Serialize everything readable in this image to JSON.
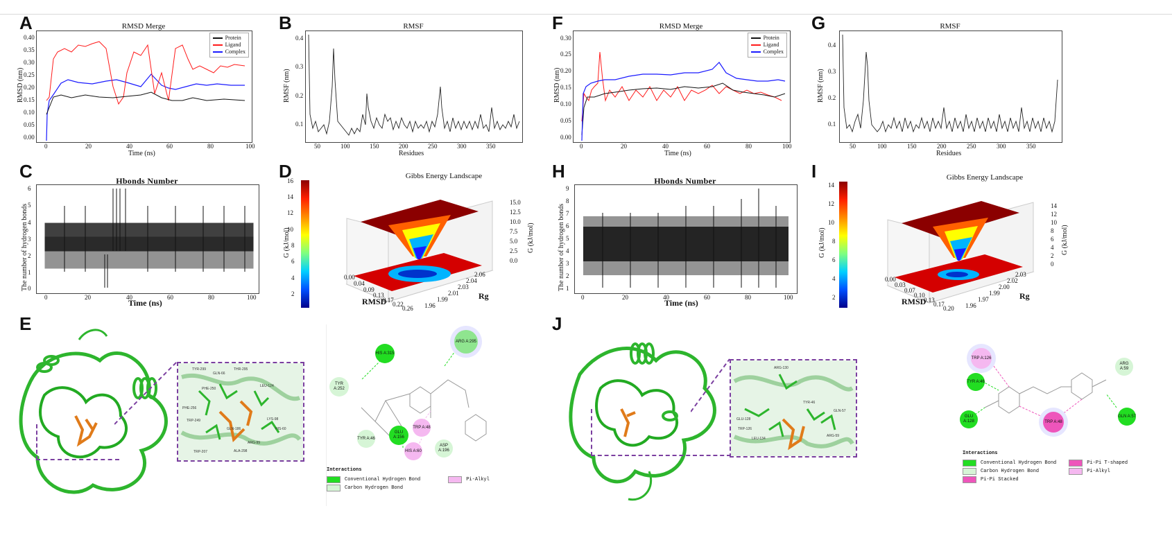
{
  "panels": {
    "A": {
      "letter": "A",
      "title": "RMSD Merge",
      "xlabel": "Time (ns)",
      "ylabel": "RMSD (nm)",
      "yticks": [
        "0.40",
        "0.35",
        "0.30",
        "0.25",
        "0.20",
        "0.15",
        "0.10",
        "0.05",
        "0.00"
      ],
      "xticks": [
        "0",
        "20",
        "40",
        "60",
        "80",
        "100"
      ],
      "legend": [
        "Protein",
        "Ligand",
        "Complex"
      ]
    },
    "B": {
      "letter": "B",
      "title": "RMSF",
      "xlabel": "Residues",
      "ylabel": "RMSF (nm)",
      "yticks": [
        "0.4",
        "0.3",
        "0.2",
        "0.1"
      ],
      "xticks": [
        "50",
        "100",
        "150",
        "200",
        "250",
        "300",
        "350"
      ]
    },
    "C": {
      "letter": "C",
      "title": "Hbonds Number",
      "xlabel": "Time (ns)",
      "ylabel": "The number of hydrogen bonds",
      "yticks": [
        "6",
        "5",
        "4",
        "3",
        "2",
        "1",
        "0"
      ],
      "xticks": [
        "0",
        "20",
        "40",
        "60",
        "80",
        "100"
      ]
    },
    "D": {
      "letter": "D",
      "title": "Gibbs Energy Landscape",
      "cbar_label": "G (kJ/mol)",
      "zlabel": "G (kJ/mol)",
      "xlabel": "RMSD",
      "ylabel": "Rg",
      "cbar_ticks": [
        "16",
        "14",
        "12",
        "10",
        "8",
        "6",
        "4",
        "2"
      ],
      "xticks": [
        "0.00",
        "0.04",
        "0.09",
        "0.13",
        "0.17",
        "0.22",
        "0.26"
      ],
      "yticks": [
        "1.96",
        "1.99",
        "2.01",
        "2.03",
        "2.04",
        "2.06"
      ],
      "zticks": [
        "15.0",
        "12.5",
        "10.0",
        "7.5",
        "5.0",
        "2.5",
        "0.0"
      ]
    },
    "E": {
      "letter": "E"
    },
    "F": {
      "letter": "F",
      "title": "RMSD Merge",
      "xlabel": "Time (ns)",
      "ylabel": "RMSD (nm)",
      "yticks": [
        "0.30",
        "0.25",
        "0.20",
        "0.15",
        "0.10",
        "0.05",
        "0.00"
      ],
      "xticks": [
        "0",
        "20",
        "40",
        "60",
        "80",
        "100"
      ],
      "legend": [
        "Protein",
        "Ligand",
        "Complex"
      ]
    },
    "G": {
      "letter": "G",
      "title": "RMSF",
      "xlabel": "Residues",
      "ylabel": "RMSF (nm)",
      "yticks": [
        "0.4",
        "0.3",
        "0.2",
        "0.1"
      ],
      "xticks": [
        "50",
        "100",
        "150",
        "200",
        "250",
        "300",
        "350"
      ]
    },
    "H": {
      "letter": "H",
      "title": "Hbonds Number",
      "xlabel": "Time (ns)",
      "ylabel": "The number of hydrogen bonds",
      "yticks": [
        "9",
        "8",
        "7",
        "6",
        "5",
        "4",
        "3",
        "2",
        "1"
      ],
      "xticks": [
        "0",
        "20",
        "40",
        "60",
        "80",
        "100"
      ]
    },
    "I": {
      "letter": "I",
      "title": "Gibbs Energy Landscape",
      "cbar_label": "G (kJ/mol)",
      "zlabel": "G (kJ/mol)",
      "xlabel": "RMSD",
      "ylabel": "Rg",
      "cbar_ticks": [
        "14",
        "12",
        "10",
        "8",
        "6",
        "4",
        "2"
      ],
      "xticks": [
        "0.00",
        "0.03",
        "0.07",
        "0.10",
        "0.13",
        "0.17",
        "0.20"
      ],
      "yticks": [
        "1.96",
        "1.97",
        "1.99",
        "2.00",
        "2.02",
        "2.03"
      ],
      "zticks": [
        "14",
        "12",
        "10",
        "8",
        "6",
        "4",
        "2",
        "0"
      ]
    },
    "J": {
      "letter": "J"
    }
  },
  "interactions_E": {
    "title": "Interactions",
    "items": [
      {
        "label": "Conventional Hydrogen Bond",
        "color": "#22dd22"
      },
      {
        "label": "Carbon Hydrogen Bond",
        "color": "#d6f5d6"
      },
      {
        "label": "Pi-Alkyl",
        "color": "#f5b8f0"
      }
    ],
    "residues": [
      "HIS A:315",
      "ARG A:295",
      "TYR A:252",
      "TYR A:46",
      "GLU A:156",
      "TRP A:48",
      "ASP A:196",
      "HIS A:60"
    ]
  },
  "interactions_J": {
    "title": "Interactions",
    "items": [
      {
        "label": "Conventional Hydrogen Bond",
        "color": "#22dd22"
      },
      {
        "label": "Carbon Hydrogen Bond",
        "color": "#d6f5d6"
      },
      {
        "label": "Pi-Pi Stacked",
        "color": "#ee55bb"
      },
      {
        "label": "Pi-Pi T-shaped",
        "color": "#ee55bb"
      },
      {
        "label": "Pi-Alkyl",
        "color": "#f5b8f0"
      }
    ],
    "residues": [
      "TRP A:126",
      "TYR A:46",
      "ARG A:59",
      "GLU A:128",
      "GLN A:57",
      "TRP A:48"
    ]
  },
  "struct_E_labels": [
    "TYR-299",
    "GLN-66",
    "THR-295",
    "PHE-250",
    "PHE-256",
    "TRP-249",
    "LEU-124",
    "GLN-186",
    "LYS-98",
    "HIS-60",
    "TRP-207",
    "ALA-298",
    "ARG-99"
  ],
  "struct_J_labels": [
    "ARG-130",
    "GLU-128",
    "TRP-126",
    "TYR-46",
    "GLN-57",
    "ARG-59",
    "LEU-134"
  ]
}
